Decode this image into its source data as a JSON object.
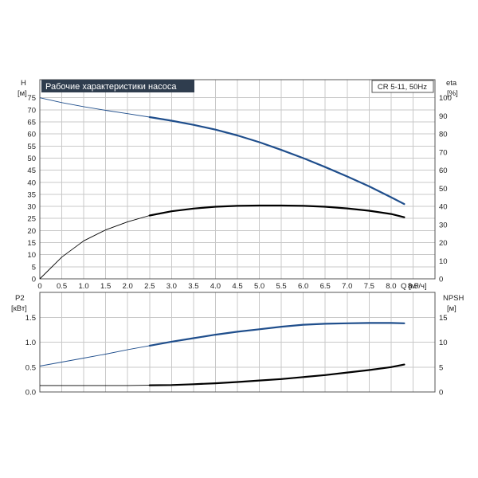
{
  "colors": {
    "blue": "#1f4e8c",
    "black": "#000000",
    "grid": "#c8c8c8",
    "title_bg": "#2f3d4e"
  },
  "chart_data": [
    {
      "type": "line",
      "title": "Рабочие характеристики насоса",
      "badge": "CR 5-11, 50Hz",
      "xlabel": "Q [м³/ч]",
      "ylabel_left": [
        "H",
        "[м]"
      ],
      "ylabel_right": [
        "eta",
        "[%]"
      ],
      "x_ticks": [
        "0",
        "0.5",
        "1.0",
        "1.5",
        "2.0",
        "2.5",
        "3.0",
        "3.5",
        "4.0",
        "4.5",
        "5.0",
        "5.5",
        "6.0",
        "6.5",
        "7.0",
        "7.5",
        "8.0",
        "8.5"
      ],
      "y_left_ticks": [
        "0",
        "5",
        "10",
        "15",
        "20",
        "25",
        "30",
        "35",
        "40",
        "45",
        "50",
        "55",
        "60",
        "65",
        "70",
        "75"
      ],
      "y_right_ticks": [
        "0",
        "10",
        "20",
        "30",
        "40",
        "50",
        "60",
        "70",
        "80",
        "90",
        "100"
      ],
      "xlim": [
        0,
        9.0
      ],
      "ylim_left": [
        0,
        82.5
      ],
      "ylim_right": [
        0,
        110
      ],
      "series": [
        {
          "axis": "left",
          "color": "#1f4e8c",
          "x": [
            0,
            0.5,
            1.0,
            1.5,
            2.0,
            2.5,
            3.0,
            3.5,
            4.0,
            4.5,
            5.0,
            5.5,
            6.0,
            6.5,
            7.0,
            7.5,
            8.0,
            8.3
          ],
          "y": [
            75,
            73.0,
            71.3,
            69.8,
            68.4,
            67.0,
            65.5,
            63.8,
            61.8,
            59.4,
            56.6,
            53.4,
            50.0,
            46.3,
            42.4,
            38.3,
            33.8,
            31.0
          ]
        },
        {
          "axis": "right",
          "color": "#000000",
          "x": [
            0,
            0.5,
            1.0,
            1.5,
            2.0,
            2.5,
            3.0,
            3.5,
            4.0,
            4.5,
            5.0,
            5.5,
            6.0,
            6.5,
            7.0,
            7.5,
            8.0,
            8.3
          ],
          "y": [
            0,
            12,
            21,
            27,
            31.5,
            35,
            37.3,
            38.8,
            39.8,
            40.3,
            40.5,
            40.5,
            40.3,
            39.8,
            38.9,
            37.6,
            35.8,
            34.0
          ]
        }
      ]
    },
    {
      "type": "line",
      "xlabel": "",
      "ylabel_left": [
        "P2",
        "[кВт]"
      ],
      "ylabel_right": [
        "NPSH",
        "[м]"
      ],
      "x_ticks": [],
      "y_left_ticks": [
        "0.0",
        "0.5",
        "1.0",
        "1.5"
      ],
      "y_right_ticks": [
        "0",
        "5",
        "10",
        "15"
      ],
      "xlim": [
        0,
        9.0
      ],
      "ylim_left": [
        0,
        2.0
      ],
      "ylim_right": [
        0,
        20
      ],
      "series": [
        {
          "axis": "left",
          "color": "#1f4e8c",
          "x": [
            0,
            0.5,
            1.0,
            1.5,
            2.0,
            2.5,
            3.0,
            3.5,
            4.0,
            4.5,
            5.0,
            5.5,
            6.0,
            6.5,
            7.0,
            7.5,
            8.0,
            8.3
          ],
          "y": [
            0.52,
            0.6,
            0.68,
            0.76,
            0.85,
            0.93,
            1.01,
            1.08,
            1.15,
            1.21,
            1.26,
            1.31,
            1.35,
            1.37,
            1.38,
            1.385,
            1.385,
            1.38
          ]
        },
        {
          "axis": "right",
          "color": "#000000",
          "x": [
            0,
            0.5,
            1.0,
            1.5,
            2.0,
            2.5,
            3.0,
            3.5,
            4.0,
            4.5,
            5.0,
            5.5,
            6.0,
            6.5,
            7.0,
            7.5,
            8.0,
            8.3
          ],
          "y": [
            1.3,
            1.3,
            1.3,
            1.3,
            1.3,
            1.35,
            1.4,
            1.55,
            1.75,
            2.0,
            2.3,
            2.6,
            3.0,
            3.4,
            3.9,
            4.4,
            5.0,
            5.5
          ]
        }
      ]
    }
  ]
}
